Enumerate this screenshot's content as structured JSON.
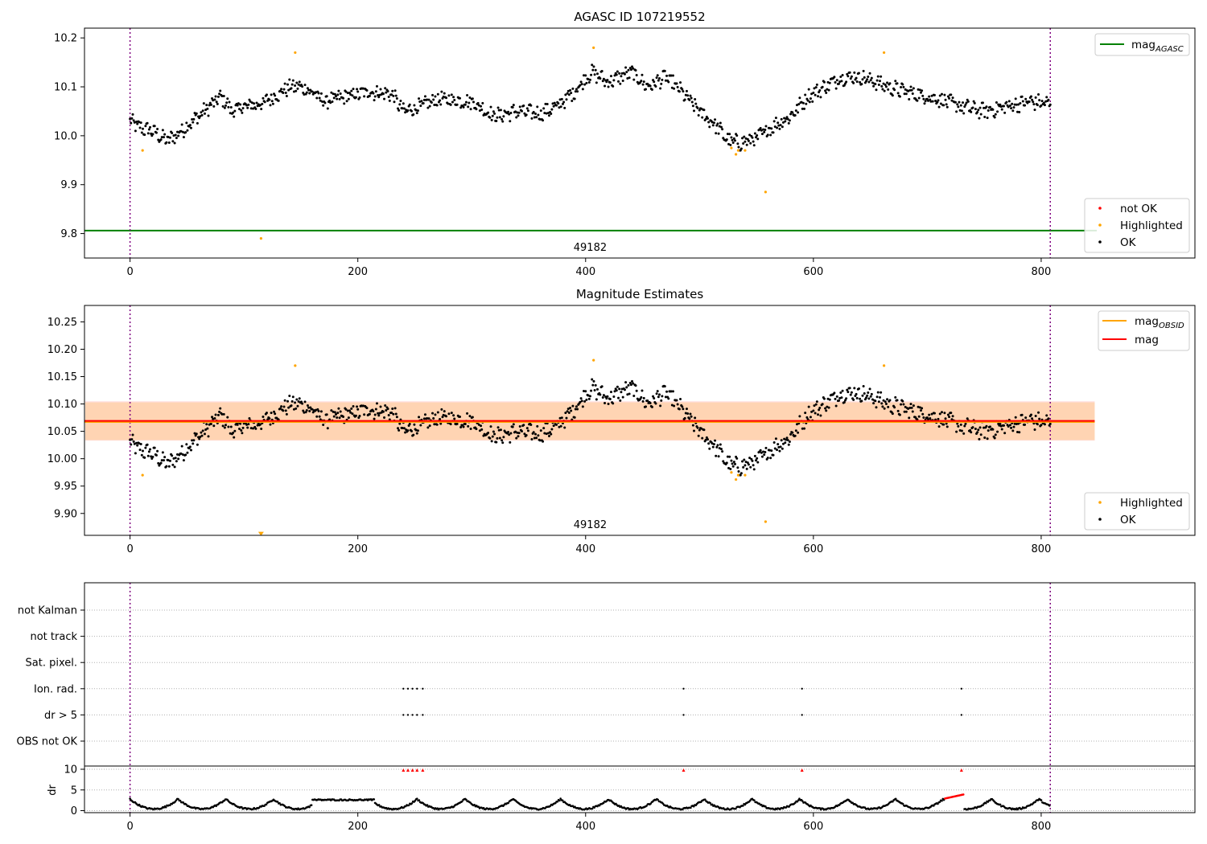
{
  "chart_data": [
    {
      "type": "scatter",
      "title": "AGASC ID 107219552",
      "ylim": [
        9.75,
        10.22
      ],
      "xlim": [
        -40,
        935
      ],
      "xticks": [
        0,
        200,
        400,
        600,
        800
      ],
      "yticks": [
        9.8,
        9.9,
        10.0,
        10.1,
        10.2
      ],
      "ytick_labels": [
        "9.8",
        "9.9",
        "10.0",
        "10.1",
        "10.2"
      ],
      "obs_boundaries": [
        0,
        808
      ],
      "obs_label": {
        "text": "49182",
        "x": 404
      },
      "mag_agasc": 9.806,
      "legend_lines": [
        {
          "label": "mag",
          "subscript": "AGASC",
          "color": "#008000"
        }
      ],
      "legend_points": [
        {
          "label": "not OK",
          "color": "#ff0000"
        },
        {
          "label": "Highlighted",
          "color": "#ffa500"
        },
        {
          "label": "OK",
          "color": "#000000"
        }
      ],
      "highlighted": [
        [
          11,
          9.97
        ],
        [
          115,
          9.79
        ],
        [
          145,
          10.17
        ],
        [
          407,
          10.18
        ],
        [
          528,
          9.975
        ],
        [
          532,
          9.962
        ],
        [
          534,
          9.97
        ],
        [
          540,
          9.97
        ],
        [
          558,
          9.885
        ],
        [
          662,
          10.17
        ]
      ],
      "series_ok": {
        "x_range": [
          0,
          808
        ],
        "anchors": [
          [
            0,
            10.03
          ],
          [
            10,
            10.015
          ],
          [
            20,
            10.01
          ],
          [
            32,
            9.99
          ],
          [
            40,
            10.0
          ],
          [
            55,
            10.03
          ],
          [
            70,
            10.06
          ],
          [
            80,
            10.08
          ],
          [
            90,
            10.05
          ],
          [
            100,
            10.06
          ],
          [
            115,
            10.065
          ],
          [
            130,
            10.085
          ],
          [
            140,
            10.1
          ],
          [
            150,
            10.1
          ],
          [
            160,
            10.09
          ],
          [
            170,
            10.07
          ],
          [
            190,
            10.08
          ],
          [
            210,
            10.09
          ],
          [
            230,
            10.085
          ],
          [
            240,
            10.05
          ],
          [
            255,
            10.06
          ],
          [
            270,
            10.075
          ],
          [
            300,
            10.07
          ],
          [
            320,
            10.04
          ],
          [
            340,
            10.05
          ],
          [
            360,
            10.045
          ],
          [
            375,
            10.06
          ],
          [
            390,
            10.09
          ],
          [
            405,
            10.13
          ],
          [
            420,
            10.11
          ],
          [
            440,
            10.13
          ],
          [
            455,
            10.1
          ],
          [
            470,
            10.12
          ],
          [
            480,
            10.1
          ],
          [
            500,
            10.05
          ],
          [
            515,
            10.02
          ],
          [
            525,
            9.99
          ],
          [
            535,
            9.985
          ],
          [
            550,
            9.995
          ],
          [
            565,
            10.02
          ],
          [
            580,
            10.04
          ],
          [
            595,
            10.08
          ],
          [
            610,
            10.1
          ],
          [
            625,
            10.12
          ],
          [
            640,
            10.12
          ],
          [
            655,
            10.11
          ],
          [
            665,
            10.1
          ],
          [
            690,
            10.085
          ],
          [
            710,
            10.075
          ],
          [
            730,
            10.06
          ],
          [
            750,
            10.05
          ],
          [
            770,
            10.06
          ],
          [
            790,
            10.07
          ],
          [
            808,
            10.065
          ]
        ],
        "spread": 0.014
      }
    },
    {
      "type": "scatter",
      "title": "Magnitude Estimates",
      "ylim": [
        9.86,
        10.28
      ],
      "xlim": [
        -40,
        935
      ],
      "xticks": [
        0,
        200,
        400,
        600,
        800
      ],
      "yticks": [
        9.9,
        9.95,
        10.0,
        10.05,
        10.1,
        10.15,
        10.2,
        10.25
      ],
      "ytick_labels": [
        "9.90",
        "9.95",
        "10.00",
        "10.05",
        "10.10",
        "10.15",
        "10.20",
        "10.25"
      ],
      "obs_boundaries": [
        0,
        808
      ],
      "obs_label": {
        "text": "49182",
        "x": 404
      },
      "mag_obsid": 10.067,
      "mag": 10.069,
      "band_obsid": [
        10.034,
        10.103
      ],
      "band_mag": [
        10.033,
        10.105
      ],
      "band_x_range": [
        -40,
        847
      ],
      "legend_lines": [
        {
          "label": "mag",
          "subscript": "OBSID",
          "color": "#ffa500"
        },
        {
          "label": "mag",
          "subscript": "",
          "color": "#ff0000"
        }
      ],
      "legend_points": [
        {
          "label": "Highlighted",
          "color": "#ffa500"
        },
        {
          "label": "OK",
          "color": "#000000"
        }
      ],
      "highlighted": [
        [
          11,
          9.97
        ],
        [
          145,
          10.17
        ],
        [
          407,
          10.18
        ],
        [
          528,
          9.975
        ],
        [
          532,
          9.962
        ],
        [
          534,
          9.97
        ],
        [
          540,
          9.97
        ],
        [
          558,
          9.885
        ],
        [
          662,
          10.17
        ]
      ],
      "off_axis_markers": [
        [
          115,
          9.862
        ]
      ]
    },
    {
      "type": "scatter",
      "xlim": [
        -40,
        935
      ],
      "xticks": [
        0,
        200,
        400,
        600,
        800
      ],
      "obs_boundaries": [
        0,
        808
      ],
      "flag_rows": [
        "not Kalman",
        "not track",
        "Sat. pixel.",
        "Ion. rad.",
        "dr > 5",
        "OBS not OK"
      ],
      "flag_points": {
        "Ion. rad.": [
          240,
          244,
          248,
          252,
          257,
          486,
          590,
          730
        ],
        "dr > 5": [
          240,
          244,
          248,
          252,
          257,
          486,
          590,
          730
        ]
      },
      "dr": {
        "ylabel": "dr",
        "ylim": [
          -0.5,
          10.5
        ],
        "yticks": [
          0,
          5,
          10
        ],
        "outliers_x": [
          240,
          244,
          248,
          252,
          257,
          486,
          590,
          730
        ],
        "outlier_value": 9.8,
        "red_threshold": 2.9
      }
    }
  ]
}
